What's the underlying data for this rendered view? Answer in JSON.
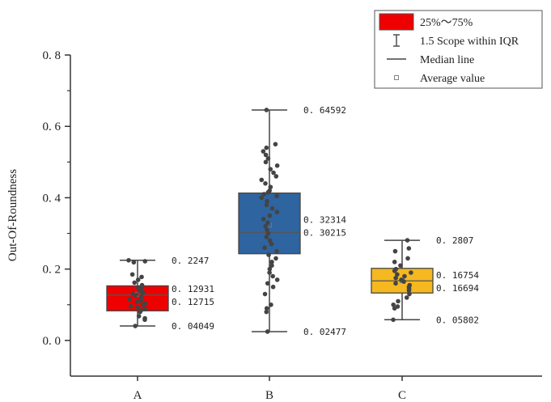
{
  "chart_data": {
    "type": "box",
    "ylabel": "Out-Of-Roundness",
    "ylim": [
      -0.1,
      0.8
    ],
    "yticks": [
      0.0,
      0.2,
      0.4,
      0.6,
      0.8
    ],
    "ytick_labels": [
      "0. 0",
      "0. 2",
      "0. 4",
      "0. 6",
      "0. 8"
    ],
    "categories": [
      "A",
      "B",
      "C"
    ],
    "boxes": [
      {
        "category": "A",
        "color": "#ee0000",
        "q1": 0.083,
        "q3": 0.153,
        "whisker_low": 0.04049,
        "whisker_high": 0.2247,
        "median": 0.12715,
        "mean": 0.12931,
        "labels": {
          "whisker_high": "0. 2247",
          "mean": "0. 12931",
          "median": "0. 12715",
          "whisker_low": "0. 04049"
        },
        "points": [
          0.2247,
          0.222,
          0.219,
          0.185,
          0.178,
          0.17,
          0.162,
          0.155,
          0.15,
          0.148,
          0.142,
          0.138,
          0.134,
          0.13,
          0.127,
          0.124,
          0.12,
          0.116,
          0.112,
          0.108,
          0.104,
          0.1,
          0.096,
          0.092,
          0.088,
          0.084,
          0.08,
          0.068,
          0.062,
          0.058,
          0.04049
        ]
      },
      {
        "category": "B",
        "color": "#2e64a0",
        "q1": 0.243,
        "q3": 0.413,
        "whisker_low": 0.02477,
        "whisker_high": 0.64592,
        "median": 0.30215,
        "mean": 0.32314,
        "labels": {
          "whisker_high": "0. 64592",
          "mean": "0. 32314",
          "median": "0. 30215",
          "whisker_low": "0. 02477"
        },
        "points": [
          0.64592,
          0.55,
          0.54,
          0.53,
          0.52,
          0.51,
          0.5,
          0.49,
          0.48,
          0.47,
          0.46,
          0.45,
          0.44,
          0.43,
          0.42,
          0.415,
          0.41,
          0.405,
          0.4,
          0.39,
          0.38,
          0.37,
          0.36,
          0.35,
          0.34,
          0.33,
          0.32,
          0.31,
          0.3,
          0.29,
          0.28,
          0.27,
          0.26,
          0.25,
          0.24,
          0.23,
          0.22,
          0.21,
          0.2,
          0.19,
          0.18,
          0.17,
          0.16,
          0.15,
          0.13,
          0.1,
          0.09,
          0.08,
          0.02477
        ]
      },
      {
        "category": "C",
        "color": "#f5b820",
        "q1": 0.133,
        "q3": 0.202,
        "whisker_low": 0.05802,
        "whisker_high": 0.2807,
        "median": 0.16694,
        "mean": 0.16754,
        "labels": {
          "whisker_high": "0. 2807",
          "mean": "0. 16754",
          "median": "0. 16694",
          "whisker_low": "0. 05802"
        },
        "points": [
          0.2807,
          0.258,
          0.25,
          0.23,
          0.22,
          0.21,
          0.2,
          0.195,
          0.19,
          0.185,
          0.18,
          0.175,
          0.17,
          0.165,
          0.16,
          0.155,
          0.15,
          0.145,
          0.14,
          0.13,
          0.12,
          0.11,
          0.1,
          0.095,
          0.09,
          0.05802
        ]
      }
    ],
    "legend": {
      "placement": "top-right",
      "items": [
        {
          "label": "25%～75%",
          "symbol": "box",
          "color": "#ee0000"
        },
        {
          "label": "1.5 Scope within IQR",
          "symbol": "whisker"
        },
        {
          "label": "Median line",
          "symbol": "line"
        },
        {
          "label": "Average value",
          "symbol": "square"
        }
      ]
    }
  }
}
